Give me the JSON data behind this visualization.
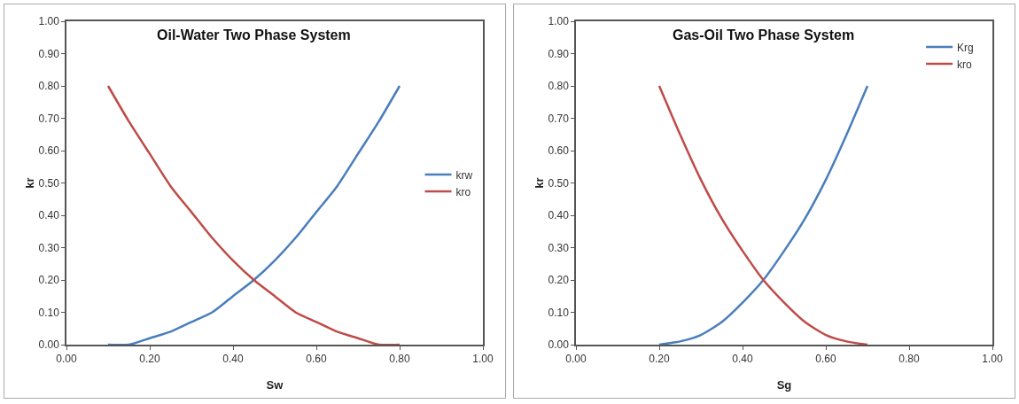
{
  "chart_data": [
    {
      "type": "line",
      "title": "Oil-Water Two Phase System",
      "xlabel": "Sw",
      "ylabel": "kr",
      "legend": "right",
      "grid": false,
      "marker": "none",
      "line_style": "solid",
      "x": [
        0.1,
        0.15,
        0.2,
        0.25,
        0.3,
        0.35,
        0.4,
        0.45,
        0.5,
        0.55,
        0.6,
        0.65,
        0.7,
        0.75,
        0.8
      ],
      "xlim": [
        0,
        1
      ],
      "xticks": [
        {
          "value": 0,
          "label": "0.00"
        },
        {
          "value": 0.2,
          "label": "0.20"
        },
        {
          "value": 0.4,
          "label": "0.40"
        },
        {
          "value": 0.6,
          "label": "0.60"
        },
        {
          "value": 0.8,
          "label": "0.80"
        },
        {
          "value": 1,
          "label": "1.00"
        }
      ],
      "ylim": [
        0,
        1
      ],
      "yticks": [
        {
          "value": 0,
          "label": "0.00"
        },
        {
          "value": 0.1,
          "label": "0.10"
        },
        {
          "value": 0.2,
          "label": "0.20"
        },
        {
          "value": 0.3,
          "label": "0.30"
        },
        {
          "value": 0.4,
          "label": "0.40"
        },
        {
          "value": 0.5,
          "label": "0.50"
        },
        {
          "value": 0.6,
          "label": "0.60"
        },
        {
          "value": 0.7,
          "label": "0.70"
        },
        {
          "value": 0.8,
          "label": "0.80"
        },
        {
          "value": 0.9,
          "label": "0.90"
        },
        {
          "value": 1,
          "label": "1.00"
        }
      ],
      "series": [
        {
          "name": "krw",
          "color": "#4a7ebb",
          "values": [
            0,
            0,
            0.02,
            0.04,
            0.07,
            0.1,
            0.15,
            0.2,
            0.26,
            0.33,
            0.41,
            0.49,
            0.59,
            0.69,
            0.8
          ]
        },
        {
          "name": "kro",
          "color": "#be4b48",
          "values": [
            0.8,
            0.69,
            0.59,
            0.49,
            0.41,
            0.33,
            0.26,
            0.2,
            0.15,
            0.1,
            0.07,
            0.04,
            0.02,
            0,
            0
          ]
        }
      ]
    },
    {
      "type": "line",
      "title": "Gas-Oil Two Phase System",
      "xlabel": "Sg",
      "ylabel": "kr",
      "legend": "top right",
      "grid": false,
      "marker": "none",
      "line_style": "solid",
      "x": [
        0.2,
        0.25,
        0.3,
        0.35,
        0.4,
        0.45,
        0.5,
        0.55,
        0.6,
        0.65,
        0.7
      ],
      "xlim": [
        0,
        1
      ],
      "xticks": [
        {
          "value": 0,
          "label": "0.00"
        },
        {
          "value": 0.2,
          "label": "0.20"
        },
        {
          "value": 0.4,
          "label": "0.40"
        },
        {
          "value": 0.6,
          "label": "0.60"
        },
        {
          "value": 0.8,
          "label": "0.80"
        },
        {
          "value": 1,
          "label": "1.00"
        }
      ],
      "ylim": [
        0,
        1
      ],
      "yticks": [
        {
          "value": 0,
          "label": "0.00"
        },
        {
          "value": 0.1,
          "label": "0.10"
        },
        {
          "value": 0.2,
          "label": "0.20"
        },
        {
          "value": 0.3,
          "label": "0.30"
        },
        {
          "value": 0.4,
          "label": "0.40"
        },
        {
          "value": 0.5,
          "label": "0.50"
        },
        {
          "value": 0.6,
          "label": "0.60"
        },
        {
          "value": 0.7,
          "label": "0.70"
        },
        {
          "value": 0.8,
          "label": "0.80"
        },
        {
          "value": 0.9,
          "label": "0.90"
        },
        {
          "value": 1,
          "label": "1.00"
        }
      ],
      "series": [
        {
          "name": "Krg",
          "color": "#4a7ebb",
          "values": [
            0,
            0.01,
            0.03,
            0.07,
            0.13,
            0.2,
            0.29,
            0.39,
            0.51,
            0.65,
            0.8
          ]
        },
        {
          "name": "kro",
          "color": "#be4b48",
          "values": [
            0.8,
            0.65,
            0.51,
            0.39,
            0.29,
            0.2,
            0.13,
            0.07,
            0.03,
            0.01,
            0
          ]
        }
      ]
    }
  ]
}
